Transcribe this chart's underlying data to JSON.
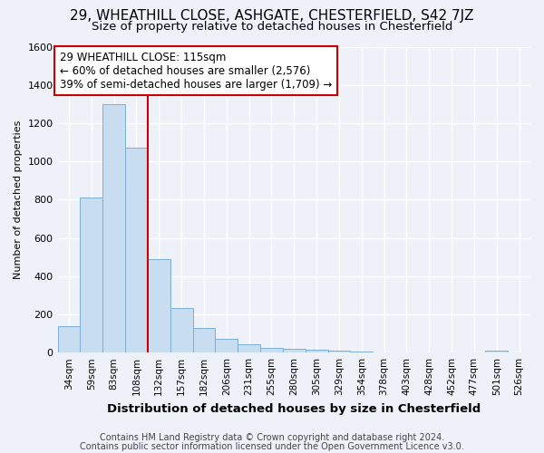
{
  "title1": "29, WHEATHILL CLOSE, ASHGATE, CHESTERFIELD, S42 7JZ",
  "title2": "Size of property relative to detached houses in Chesterfield",
  "xlabel": "Distribution of detached houses by size in Chesterfield",
  "ylabel": "Number of detached properties",
  "footnote1": "Contains HM Land Registry data © Crown copyright and database right 2024.",
  "footnote2": "Contains public sector information licensed under the Open Government Licence v3.0.",
  "categories": [
    "34sqm",
    "59sqm",
    "83sqm",
    "108sqm",
    "132sqm",
    "157sqm",
    "182sqm",
    "206sqm",
    "231sqm",
    "255sqm",
    "280sqm",
    "305sqm",
    "329sqm",
    "354sqm",
    "378sqm",
    "403sqm",
    "428sqm",
    "452sqm",
    "477sqm",
    "501sqm",
    "526sqm"
  ],
  "values": [
    140,
    810,
    1300,
    1070,
    490,
    235,
    130,
    70,
    45,
    25,
    20,
    15,
    10,
    5,
    3,
    2,
    1,
    1,
    1,
    10,
    1
  ],
  "bar_color": "#c9ddf0",
  "bar_edge_color": "#7bafd4",
  "reference_line_x": 3.5,
  "annotation_label": "29 WHEATHILL CLOSE: 115sqm",
  "annotation_line1": "← 60% of detached houses are smaller (2,576)",
  "annotation_line2": "39% of semi-detached houses are larger (1,709) →",
  "annotation_box_color": "#ffffff",
  "annotation_box_edge": "#cc0000",
  "ref_line_color": "#cc0000",
  "background_color": "#eef2f8",
  "ylim": [
    0,
    1600
  ],
  "yticks": [
    0,
    200,
    400,
    600,
    800,
    1000,
    1200,
    1400,
    1600
  ],
  "title1_fontsize": 11,
  "title2_fontsize": 9.5,
  "xlabel_fontsize": 9.5,
  "ylabel_fontsize": 8,
  "xtick_fontsize": 7.5,
  "ytick_fontsize": 8,
  "annotation_fontsize": 8.5,
  "footnote_fontsize": 7
}
